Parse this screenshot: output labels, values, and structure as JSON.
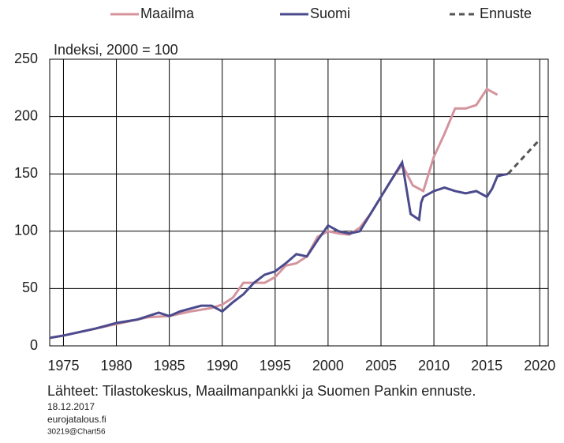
{
  "chart_data": {
    "type": "line",
    "annotation": "Indeksi, 2000 = 100",
    "source": "Lähteet: Tilastokeskus, Maailmanpankki ja Suomen Pankin ennuste.",
    "date": "18.12.2017",
    "site": "eurojatalous.fi",
    "code": "30219@Chart56",
    "xlim": [
      1973.7,
      2020.8
    ],
    "xticks": [
      1975,
      1980,
      1985,
      1990,
      1995,
      2000,
      2005,
      2010,
      2015,
      2020
    ],
    "ylim": [
      0,
      250
    ],
    "yticks": [
      0,
      50,
      100,
      150,
      200,
      250
    ],
    "grid": true,
    "series": [
      {
        "name": "Maailma",
        "color": "#d4949e",
        "dash": false,
        "x": [
          1973.7,
          1975,
          1978,
          1980,
          1983,
          1985,
          1987,
          1989,
          1990,
          1991,
          1992,
          1993,
          1994,
          1995,
          1996,
          1997,
          1998,
          1999,
          2000,
          2001,
          2002,
          2003,
          2004,
          2005,
          2006,
          2007,
          2008,
          2009,
          2010,
          2011,
          2012,
          2013,
          2014,
          2015,
          2016
        ],
        "values": [
          7,
          9,
          15,
          19,
          25,
          26,
          30,
          33,
          36,
          42,
          55,
          55,
          55,
          60,
          70,
          72,
          78,
          95,
          100,
          98,
          97,
          103,
          115,
          130,
          145,
          158,
          140,
          135,
          165,
          185,
          207,
          207,
          210,
          224,
          219
        ]
      },
      {
        "name": "Suomi",
        "color": "#4b4a8c",
        "dash": false,
        "x": [
          1973.7,
          1975,
          1978,
          1980,
          1982,
          1984,
          1985,
          1986,
          1988,
          1989,
          1990,
          1991,
          1992,
          1993,
          1994,
          1995,
          1996,
          1997,
          1998,
          1999,
          2000,
          2001,
          2002,
          2003,
          2004,
          2005,
          2006,
          2007,
          2007.8,
          2008.6,
          2008.8,
          2009,
          2010,
          2011,
          2012,
          2013,
          2014,
          2015,
          2015.5,
          2016,
          2017
        ],
        "values": [
          7,
          9,
          15,
          20,
          23,
          29,
          26,
          30,
          35,
          35,
          30,
          38,
          45,
          55,
          62,
          65,
          72,
          80,
          78,
          92,
          105,
          100,
          98,
          100,
          115,
          130,
          145,
          160,
          115,
          110,
          125,
          130,
          135,
          138,
          135,
          133,
          135,
          130,
          137,
          148,
          150
        ]
      },
      {
        "name": "Ennuste",
        "color": "#555555",
        "dash": true,
        "x": [
          2017,
          2018,
          2019,
          2020
        ],
        "values": [
          150,
          160,
          170,
          180
        ]
      }
    ]
  }
}
